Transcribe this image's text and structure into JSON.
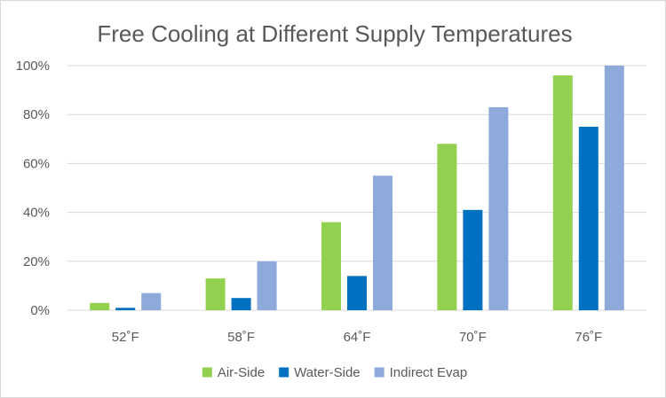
{
  "chart_data": {
    "type": "bar",
    "title": "Free Cooling at Different Supply Temperatures",
    "xlabel": "",
    "ylabel": "",
    "categories": [
      "52˚F",
      "58˚F",
      "64˚F",
      "70˚F",
      "76˚F"
    ],
    "series": [
      {
        "name": "Air-Side",
        "color": "#92d050",
        "values": [
          3,
          13,
          36,
          68,
          96
        ]
      },
      {
        "name": "Water-Side",
        "color": "#0070c0",
        "values": [
          1,
          5,
          14,
          41,
          75
        ]
      },
      {
        "name": "Indirect Evap",
        "color": "#8eaadb",
        "values": [
          7,
          20,
          55,
          83,
          100
        ]
      }
    ],
    "ylim": [
      0,
      100
    ],
    "yticks": [
      0,
      20,
      40,
      60,
      80,
      100
    ],
    "ytick_format": "{v}%",
    "ytick_labels": [
      "0%",
      "20%",
      "40%",
      "60%",
      "80%",
      "100%"
    ],
    "grid": true,
    "legend_position": "bottom"
  }
}
